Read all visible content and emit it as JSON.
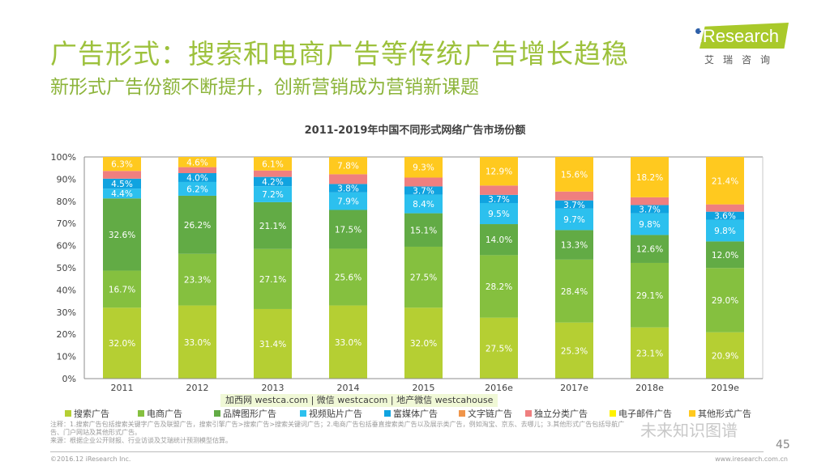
{
  "header": {
    "title": "广告形式：搜索和电商广告等传统广告增长趋稳",
    "subtitle": "新形式广告份额不断提升，创新营销成为营销新课题",
    "logo_text": "iResearch",
    "logo_cn": "艾瑞咨询"
  },
  "colors": {
    "title_green": "#9dc13c",
    "search": "#b5cf33",
    "ecommerce": "#85c03f",
    "brand_display": "#62ab45",
    "video": "#2cc0ee",
    "rich_media": "#10a3e0",
    "text_link": "#f0954a",
    "classified": "#ef7f7f",
    "email": "#fff200",
    "other": "#ffc91f"
  },
  "chart_data": {
    "type": "bar",
    "stacked": true,
    "title": "2011-2019年中国不同形式网络广告市场份额",
    "xlabel": "",
    "ylabel": "",
    "ylim": [
      0,
      100
    ],
    "yticks": [
      "0%",
      "10%",
      "20%",
      "30%",
      "40%",
      "50%",
      "60%",
      "70%",
      "80%",
      "90%",
      "100%"
    ],
    "categories": [
      "2011",
      "2012",
      "2013",
      "2014",
      "2015",
      "2016e",
      "2017e",
      "2018e",
      "2019e"
    ],
    "legend_position": "bottom",
    "series": [
      {
        "key": "search",
        "name": "搜索广告",
        "labeled": true,
        "values": [
          32.0,
          33.0,
          31.4,
          33.0,
          32.0,
          27.5,
          25.3,
          23.1,
          20.9
        ]
      },
      {
        "key": "ecommerce",
        "name": "电商广告",
        "labeled": true,
        "values": [
          16.7,
          23.3,
          27.1,
          25.6,
          27.5,
          28.2,
          28.4,
          29.1,
          29.0
        ]
      },
      {
        "key": "brand_display",
        "name": "品牌图形广告",
        "labeled": true,
        "values": [
          32.6,
          26.2,
          21.1,
          17.5,
          15.1,
          14.0,
          13.3,
          12.6,
          12.0
        ]
      },
      {
        "key": "video",
        "name": "视频贴片广告",
        "labeled": true,
        "values": [
          4.4,
          6.2,
          7.2,
          7.9,
          8.4,
          9.5,
          9.7,
          9.8,
          9.8
        ]
      },
      {
        "key": "rich_media",
        "name": "富媒体广告",
        "labeled": true,
        "values": [
          4.5,
          4.0,
          4.2,
          3.8,
          3.7,
          3.7,
          3.7,
          3.7,
          3.6
        ]
      },
      {
        "key": "text_link",
        "name": "文字链广告",
        "labeled": false,
        "values": [
          0.0,
          0.0,
          0.0,
          0.0,
          0.0,
          0.0,
          0.0,
          0.0,
          0.0
        ]
      },
      {
        "key": "classified",
        "name": "独立分类广告",
        "labeled": false,
        "values": [
          3.5,
          2.7,
          2.9,
          4.4,
          4.0,
          4.2,
          4.0,
          3.5,
          3.3
        ]
      },
      {
        "key": "email",
        "name": "电子邮件广告",
        "labeled": false,
        "values": [
          0.0,
          0.0,
          0.0,
          0.0,
          0.0,
          0.0,
          0.0,
          0.0,
          0.0
        ]
      },
      {
        "key": "other",
        "name": "其他形式广告",
        "labeled": true,
        "values": [
          6.3,
          4.6,
          6.1,
          7.8,
          9.3,
          12.9,
          15.6,
          18.2,
          21.4
        ]
      }
    ]
  },
  "footer": {
    "notes_line1": "注释：1.搜索广告包括搜索关键字广告及联盟广告，搜索引擎广告>搜索广告>搜索关键词广告；2.电商广告包括垂直搜索类广告以及展示类广告，例如淘宝、京东、去哪儿；3.其他形式广告包括导航广告、门户网站及其他形式广告。",
    "notes_line2": "来源：根据企业公开财报、行业访谈及艾瑞统计预测模型估算。",
    "copyright": "©2016.12 iResearch Inc.",
    "site": "www.iresearch.com.cn",
    "page_number": "45"
  },
  "overlays": {
    "watermark": "加西网 westca.com | 微信 westcacom | 地产微信 westcahouse",
    "wechat_mark": "未来知识图谱"
  }
}
